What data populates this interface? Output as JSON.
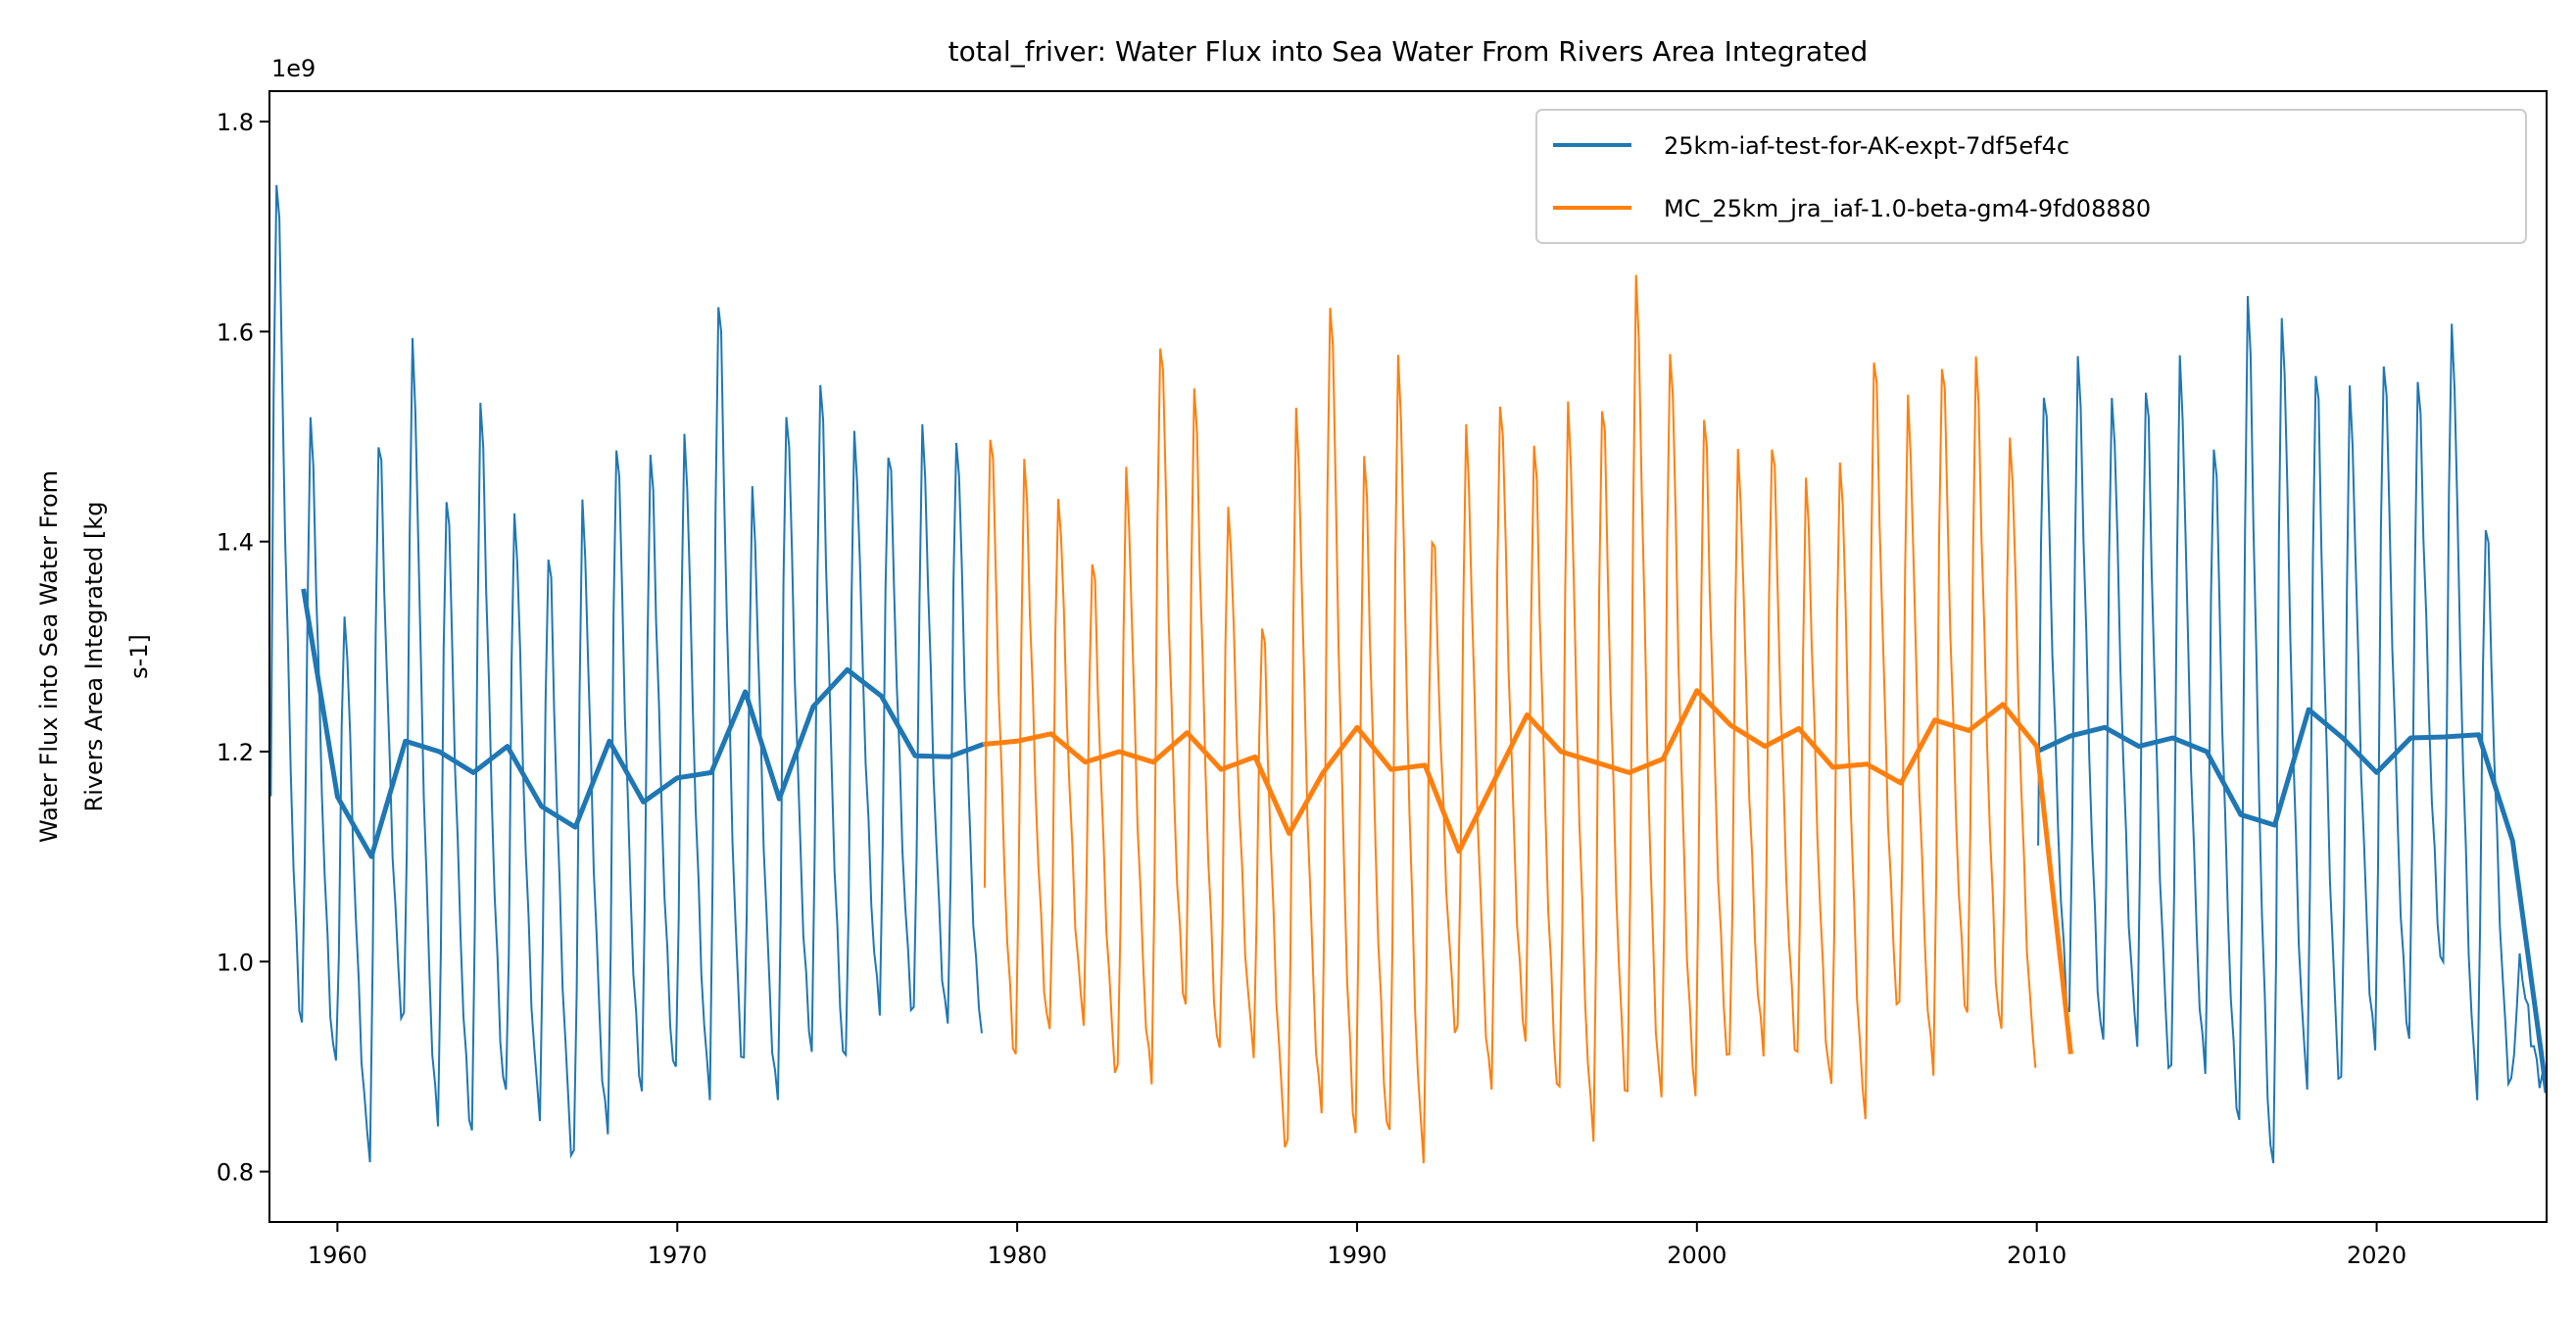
{
  "chart_data": {
    "type": "line",
    "title": "total_friver: Water Flux into Sea Water From Rivers Area Integrated",
    "xlabel": "",
    "ylabel_lines": [
      "Water Flux into Sea Water From",
      "Rivers Area Integrated [kg",
      "s-1]"
    ],
    "y_offset_label": "1e9",
    "xlim": [
      1958,
      2025
    ],
    "ylim": [
      0.752,
      1.829
    ],
    "x_ticks": [
      1960,
      1970,
      1980,
      1990,
      2000,
      2010,
      2020
    ],
    "x_tick_labels": [
      "1960",
      "1970",
      "1980",
      "1990",
      "2000",
      "2010",
      "2020"
    ],
    "y_ticks": [
      0.8,
      1.0,
      1.2,
      1.4,
      1.6,
      1.8
    ],
    "y_tick_labels": [
      "0.8",
      "1.0",
      "1.2",
      "1.4",
      "1.6",
      "1.8"
    ],
    "grid": false,
    "legend_placement": "top-right",
    "series": [
      {
        "name": "25km-iaf-test-for-AK-expt-7df5ef4c",
        "color": "#1f77b4",
        "monthly_segments": [
          {
            "start_year": 1958,
            "annual_peaks": [
              1.78,
              1.53,
              1.345,
              1.52,
              1.605,
              1.47,
              1.55,
              1.445,
              1.41,
              1.45,
              1.52,
              1.5,
              1.52,
              1.66,
              1.46,
              1.55,
              1.57,
              1.52,
              1.51,
              1.52,
              1.52
            ],
            "annual_troughs": [
              0.94,
              0.9,
              0.82,
              0.94,
              0.85,
              0.84,
              0.87,
              0.86,
              0.81,
              0.84,
              0.88,
              0.89,
              0.88,
              0.9,
              0.87,
              0.92,
              0.9,
              0.96,
              0.95,
              0.94,
              0.94
            ]
          },
          {
            "start_year": 2010,
            "annual_peaks": [
              1.57,
              1.59,
              1.56,
              1.57,
              1.59,
              1.52,
              1.655,
              1.64,
              1.59,
              1.56,
              1.6,
              1.57,
              1.625,
              1.44,
              1.0
            ],
            "annual_troughs": [
              0.95,
              0.92,
              0.93,
              0.89,
              0.9,
              0.85,
              0.8,
              0.89,
              0.88,
              0.92,
              0.93,
              0.99,
              0.88,
              0.88,
              0.88
            ]
          }
        ],
        "annual_mean": {
          "x": [
            1959,
            1960,
            1961,
            1962,
            1963,
            1964,
            1965,
            1966,
            1967,
            1968,
            1969,
            1970,
            1971,
            1972,
            1973,
            1974,
            1975,
            1976,
            1977,
            1978,
            1979,
            2010,
            2011,
            2012,
            2013,
            2014,
            2015,
            2016,
            2017,
            2018,
            2019,
            2020,
            2021,
            2022,
            2023,
            2024,
            2025
          ],
          "y": [
            1.355,
            1.157,
            1.1,
            1.21,
            1.2,
            1.18,
            1.205,
            1.148,
            1.128,
            1.21,
            1.152,
            1.175,
            1.18,
            1.257,
            1.155,
            1.243,
            1.278,
            1.253,
            1.196,
            1.195,
            1.207,
            1.2,
            1.215,
            1.223,
            1.205,
            1.213,
            1.2,
            1.14,
            1.13,
            1.24,
            1.213,
            1.18,
            1.213,
            1.214,
            1.216,
            1.115,
            0.875
          ]
        }
      },
      {
        "name": "MC_25km_jra_iaf-1.0-beta-gm4-9fd08880",
        "color": "#ff7f0e",
        "monthly_segments": [
          {
            "start_year": 1979,
            "annual_peaks": [
              1.53,
              1.49,
              1.46,
              1.4,
              1.48,
              1.62,
              1.56,
              1.45,
              1.34,
              1.54,
              1.66,
              1.5,
              1.6,
              1.43,
              1.52,
              1.56,
              1.51,
              1.55,
              1.56,
              1.67,
              1.61,
              1.54,
              1.5,
              1.52,
              1.47,
              1.5,
              1.6,
              1.55,
              1.6,
              1.59,
              1.52
            ],
            "annual_troughs": [
              0.91,
              0.93,
              0.95,
              0.89,
              0.89,
              0.96,
              0.91,
              0.92,
              0.82,
              0.86,
              0.84,
              0.83,
              0.82,
              0.93,
              0.88,
              0.93,
              0.87,
              0.84,
              0.87,
              0.87,
              0.88,
              0.9,
              0.92,
              0.91,
              0.88,
              0.86,
              0.95,
              0.9,
              0.95,
              0.93,
              0.91
            ]
          }
        ],
        "annual_mean": {
          "x": [
            1979,
            1980,
            1981,
            1982,
            1983,
            1984,
            1985,
            1986,
            1987,
            1988,
            1989,
            1990,
            1991,
            1992,
            1993,
            1994,
            1995,
            1996,
            1997,
            1998,
            1999,
            2000,
            2001,
            2002,
            2003,
            2004,
            2005,
            2006,
            2007,
            2008,
            2009,
            2010,
            2011
          ],
          "y": [
            1.207,
            1.21,
            1.217,
            1.19,
            1.2,
            1.19,
            1.218,
            1.183,
            1.195,
            1.122,
            1.18,
            1.223,
            1.183,
            1.187,
            1.105,
            1.17,
            1.235,
            1.2,
            1.19,
            1.18,
            1.193,
            1.258,
            1.225,
            1.205,
            1.222,
            1.185,
            1.188,
            1.17,
            1.23,
            1.22,
            1.245,
            1.205,
            0.912
          ]
        }
      }
    ]
  }
}
